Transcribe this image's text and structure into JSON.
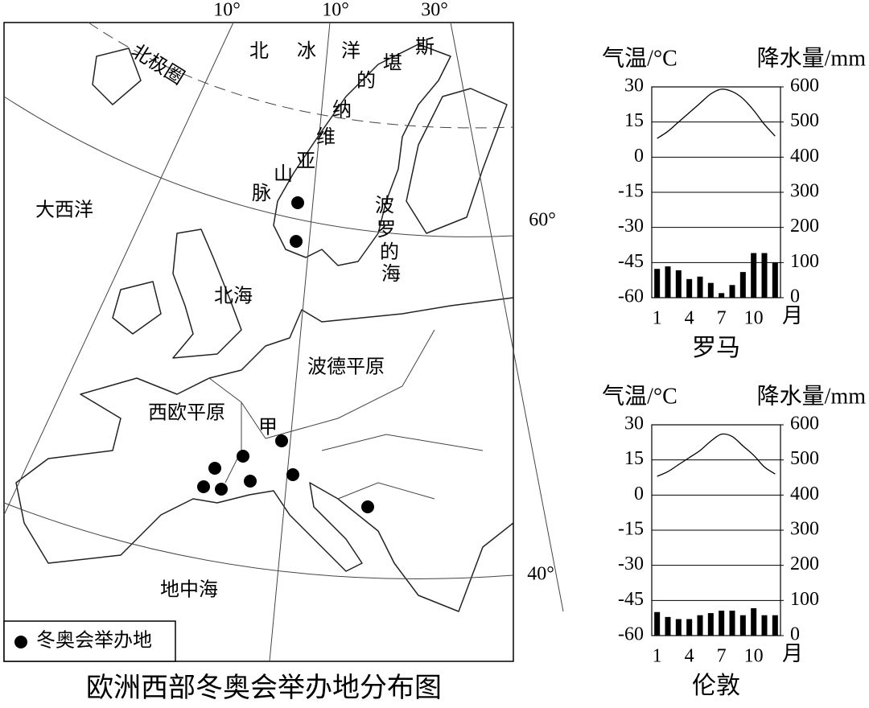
{
  "map": {
    "title": "欧洲西部冬奥会举办地分布图",
    "graticule_labels": [
      "10°",
      "10°",
      "30°",
      "60°",
      "40°"
    ],
    "place_labels": [
      "北极圈",
      "北冰洋",
      "斯堪的纳维亚山脉",
      "大西洋",
      "北海",
      "波罗的海",
      "波德平原",
      "西欧平原",
      "甲",
      "地中海"
    ],
    "legend": "冬奥会举办地"
  },
  "chart_data": [
    {
      "type": "climograph",
      "title": "罗马",
      "ylabel": "气温/°C",
      "y2label": "降水量/mm",
      "xlabel": "月",
      "categories": [
        "1",
        null,
        null,
        "4",
        null,
        null,
        "7",
        null,
        null,
        "10",
        null,
        null
      ],
      "ylim": [
        -60,
        30
      ],
      "yticks": [
        -60,
        -45,
        -30,
        -15,
        0,
        15,
        30
      ],
      "y2lim": [
        0,
        600
      ],
      "y2ticks": [
        0,
        100,
        200,
        300,
        400,
        500,
        600
      ],
      "grid": true,
      "series": [
        {
          "type": "line",
          "color": "#000000",
          "values": [
            8,
            11,
            15,
            19,
            23,
            27,
            29,
            28,
            25,
            20,
            14,
            9
          ]
        },
        {
          "type": "bar",
          "axis": "y2",
          "color": "#000000",
          "values": [
            82,
            89,
            78,
            53,
            60,
            42,
            13,
            36,
            73,
            127,
            127,
            100
          ]
        }
      ]
    },
    {
      "type": "climograph",
      "title": "伦敦",
      "ylabel": "气温/°C",
      "y2label": "降水量/mm",
      "xlabel": "月",
      "categories": [
        "1",
        null,
        null,
        "4",
        null,
        null,
        "7",
        null,
        null,
        "10",
        null,
        null
      ],
      "ylim": [
        -60,
        30
      ],
      "yticks": [
        -60,
        -45,
        -30,
        -15,
        0,
        15,
        30
      ],
      "y2lim": [
        0,
        600
      ],
      "y2ticks": [
        0,
        100,
        200,
        300,
        400,
        500,
        600
      ],
      "grid": true,
      "series": [
        {
          "type": "line",
          "color": "#000000",
          "values": [
            8,
            10,
            13,
            16,
            19,
            23,
            26,
            25,
            21,
            17,
            12,
            9
          ]
        },
        {
          "type": "bar",
          "axis": "y2",
          "color": "#000000",
          "values": [
            67,
            53,
            47,
            47,
            58,
            64,
            71,
            71,
            58,
            78,
            58,
            58
          ]
        }
      ]
    }
  ]
}
